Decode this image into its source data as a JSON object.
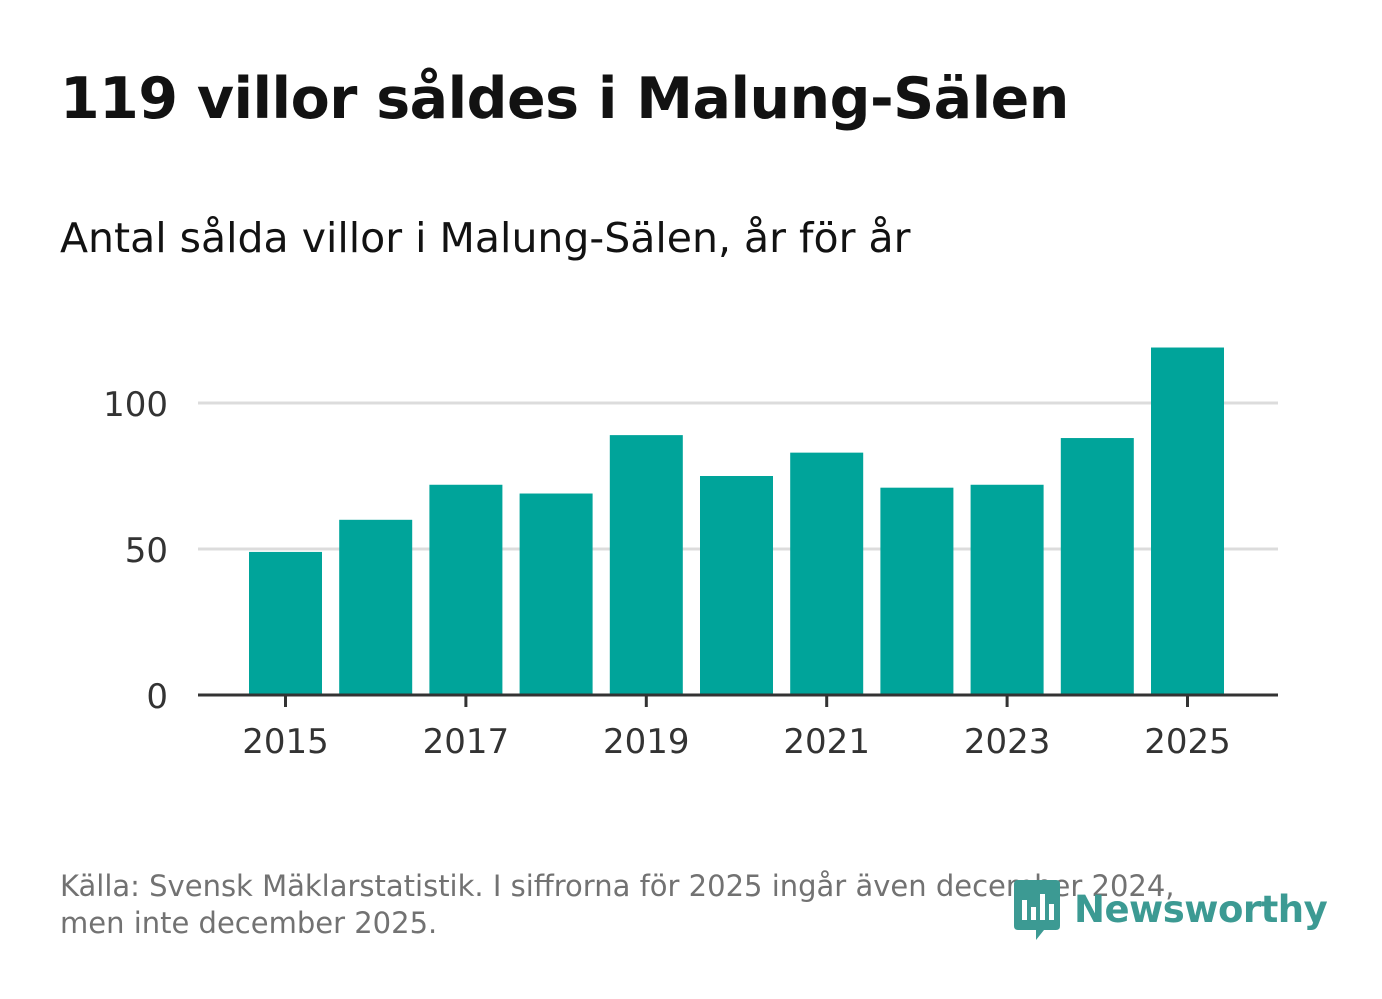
{
  "header": {
    "title": "119 villor såldes i Malung-Sälen",
    "subtitle": "Antal sålda villor i Malung-Sälen, år för år"
  },
  "chart_data": {
    "type": "bar",
    "title": "119 villor såldes i Malung-Sälen",
    "subtitle": "Antal sålda villor i Malung-Sälen, år för år",
    "xlabel": "",
    "ylabel": "",
    "categories": [
      "2015",
      "2016",
      "2017",
      "2018",
      "2019",
      "2020",
      "2021",
      "2022",
      "2023",
      "2024",
      "2025"
    ],
    "values": [
      49,
      60,
      72,
      69,
      89,
      75,
      83,
      71,
      72,
      88,
      119
    ],
    "x_tick_labels": [
      "2015",
      "2017",
      "2019",
      "2021",
      "2023",
      "2025"
    ],
    "y_ticks": [
      0,
      50,
      100
    ],
    "y_tick_labels": [
      "0",
      "50",
      "100"
    ],
    "ylim": [
      0,
      125
    ],
    "grid": true,
    "bar_color": "#00a49a"
  },
  "footer": {
    "source_line1": "Källa: Svensk Mäklarstatistik. I siffrorna för 2025 ingår även december 2024,",
    "source_line2": "men inte december 2025.",
    "logo_text": "Newsworthy",
    "logo_color": "#3c9a93"
  }
}
